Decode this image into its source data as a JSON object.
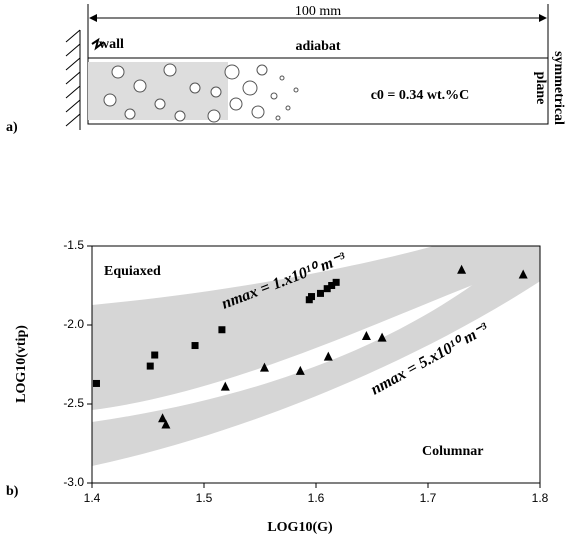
{
  "schematic": {
    "label": "a)",
    "length": "100 mm",
    "wall": "wall",
    "adiabat": "adiabat",
    "symmetry": "symmetrical",
    "plane": "plane",
    "composition": "c0 = 0.34 wt.%C"
  },
  "chart_data": {
    "type": "scatter",
    "panel_label": "b)",
    "x_label": "LOG10(G)",
    "y_label": "LOG10(vtip)",
    "xlim": [
      1.4,
      1.8
    ],
    "xticks": [
      1.4,
      1.5,
      1.6,
      1.7,
      1.8
    ],
    "ylim": [
      -3.0,
      -1.5
    ],
    "yticks": [
      {
        "value": -3.0,
        "label": "-3.0"
      },
      {
        "value": -2.5,
        "label": "-2.5"
      },
      {
        "value": -2.0,
        "label": "-2.0"
      },
      {
        "value": -1.5,
        "label": "-1.5"
      }
    ],
    "annotations": [
      "Equiaxed",
      "Columnar",
      "nmax = 1.x10¹⁰ m⁻³",
      "nmax = 5.x10¹⁰ m⁻³"
    ],
    "series": [
      {
        "marker": "square",
        "color": "#000000",
        "x": [
          1.404,
          1.452,
          1.456,
          1.492,
          1.516,
          1.594,
          1.596,
          1.604,
          1.61,
          1.614,
          1.618
        ],
        "values": [
          -2.37,
          -2.26,
          -2.19,
          -2.13,
          -2.03,
          -1.84,
          -1.82,
          -1.8,
          -1.77,
          -1.75,
          -1.73
        ]
      },
      {
        "marker": "triangle",
        "color": "#000000",
        "x": [
          1.463,
          1.466,
          1.519,
          1.554,
          1.586,
          1.611,
          1.645,
          1.659,
          1.73,
          1.785
        ],
        "values": [
          -2.59,
          -2.63,
          -2.39,
          -2.27,
          -2.29,
          -2.2,
          -2.07,
          -2.08,
          -1.65,
          -1.68
        ]
      }
    ]
  }
}
